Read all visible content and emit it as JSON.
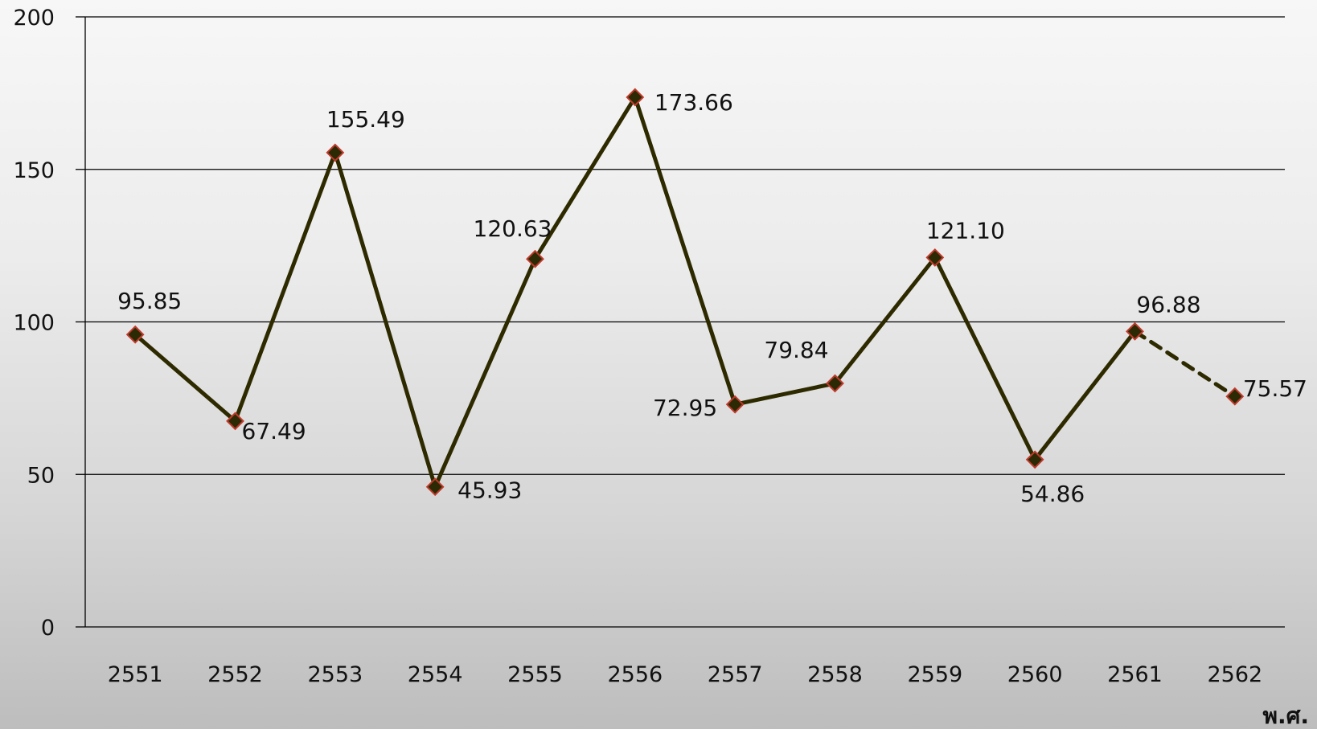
{
  "chart_data": {
    "type": "line",
    "categories": [
      "2551",
      "2552",
      "2553",
      "2554",
      "2555",
      "2556",
      "2557",
      "2558",
      "2559",
      "2560",
      "2561",
      "2562"
    ],
    "series": [
      {
        "values": [
          95.85,
          67.49,
          155.49,
          45.93,
          120.63,
          173.66,
          72.95,
          79.84,
          121.1,
          54.86,
          96.88,
          75.57
        ],
        "labels": [
          "95.85",
          "67.49",
          "155.49",
          "45.93",
          "120.63",
          "173.66",
          "72.95",
          "79.84",
          "121.10",
          "54.86",
          "96.88",
          "75.57"
        ],
        "projected_last_segment": true
      }
    ],
    "xlabel": "พ.ศ.",
    "ylabel": "",
    "ylim": [
      0,
      200
    ],
    "yticks": [
      "0",
      "50",
      "100",
      "150",
      "200"
    ],
    "grid": true,
    "legend": "none",
    "colors": {
      "line": "#2e2a00",
      "marker_fill": "#2b2a05",
      "marker_edge": "#c0392b",
      "grid": "#000000"
    }
  }
}
